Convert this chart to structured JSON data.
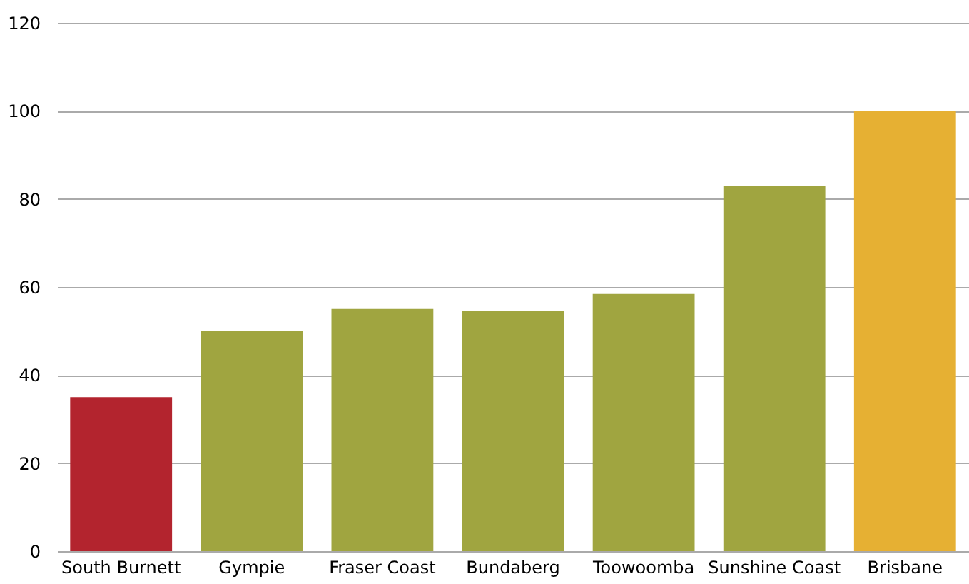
{
  "chart_data": {
    "type": "bar",
    "categories": [
      "South Burnett",
      "Gympie",
      "Fraser Coast",
      "Bundaberg",
      "Toowoomba",
      "Sunshine Coast",
      "Brisbane"
    ],
    "values": [
      35,
      50,
      55,
      54.5,
      58.4,
      83,
      100
    ],
    "colors": [
      "#b3242e",
      "#a0a540",
      "#a0a540",
      "#a0a540",
      "#a0a540",
      "#a0a540",
      "#e6b033"
    ],
    "ylim": [
      0,
      120
    ],
    "yticks": [
      0,
      20,
      40,
      60,
      80,
      100,
      120
    ],
    "grid": "y"
  }
}
